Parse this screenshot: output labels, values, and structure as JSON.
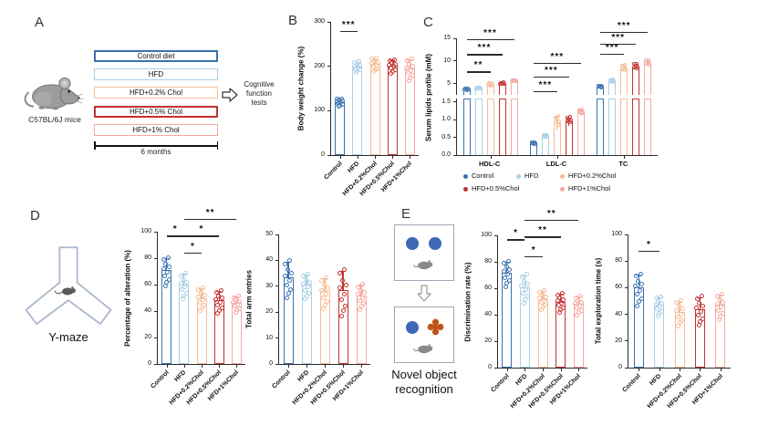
{
  "figure": {
    "background": "#ffffff",
    "series": [
      {
        "key": "control",
        "label": "Control",
        "color": "#3A72B0"
      },
      {
        "key": "hfd",
        "label": "HFD",
        "color": "#A9CFE5"
      },
      {
        "key": "hfd02",
        "label": "HFD+0.2%Chol",
        "color": "#F6BD98"
      },
      {
        "key": "hfd05",
        "label": "HFD+0.5%Chol",
        "color": "#C23230"
      },
      {
        "key": "hfd1",
        "label": "HFD+1%Chol",
        "color": "#F4A9A1"
      }
    ]
  },
  "panel_labels": {
    "A": "A",
    "B": "B",
    "C": "C",
    "D": "D",
    "E": "E"
  },
  "panelA": {
    "mouse_caption": "C57BL/6J mice",
    "diet_boxes": [
      "Control diet",
      "HFD",
      "HFD+0.2% Chol",
      "HFD+0.5% Chol",
      "HFD+1% Chol"
    ],
    "timeline_label": "6 months",
    "arrow_caption": "Cognitive function tests"
  },
  "panelD": {
    "caption": "Y-maze"
  },
  "panelE": {
    "caption_line1": "Novel object",
    "caption_line2": "recognition"
  },
  "chart_data": [
    {
      "id": "body-weight",
      "panel": "B",
      "type": "bar",
      "ylabel": "Body weight change (%)",
      "categories": [
        "Control",
        "HFD",
        "HFD+0.2%Chol",
        "HFD+0.5%Chol",
        "HFD+1%Chol"
      ],
      "values": [
        120,
        200,
        205,
        202,
        195
      ],
      "errors": [
        7,
        10,
        13,
        13,
        20
      ],
      "ylim": [
        0,
        300
      ],
      "yticks": [
        0,
        100,
        200,
        300
      ],
      "significance": [
        {
          "from": 0,
          "to": 1,
          "label": "***",
          "level": 280
        }
      ]
    },
    {
      "id": "serum-lipids",
      "panel": "C",
      "type": "grouped-bar-split-axis",
      "ylabel": "Serum lipids profile (mM)",
      "categories": [
        "Control",
        "HFD",
        "HFD+0.2%Chol",
        "HFD+0.5%Chol",
        "HFD+1%Chol"
      ],
      "group_labels": [
        "HDL-C",
        "LDL-C",
        "TC"
      ],
      "series": [
        {
          "name": "HDL-C",
          "values": [
            3.6,
            3.9,
            4.6,
            4.9,
            5.5
          ],
          "errors": [
            0.3,
            0.25,
            0.55,
            0.35,
            0.3
          ]
        },
        {
          "name": "LDL-C",
          "values": [
            0.32,
            0.52,
            0.9,
            0.95,
            1.2
          ],
          "errors": [
            0.05,
            0.05,
            0.2,
            0.12,
            0.08
          ]
        },
        {
          "name": "TC",
          "values": [
            4.2,
            5.4,
            8.1,
            8.5,
            9.4
          ],
          "errors": [
            0.35,
            0.5,
            1.0,
            0.9,
            0.8
          ]
        }
      ],
      "axis_upper": {
        "lim": [
          2.5,
          15
        ],
        "ticks": [
          5,
          10,
          15
        ]
      },
      "axis_lower": {
        "lim": [
          0,
          1.6
        ],
        "ticks": [
          0,
          0.5,
          1,
          1.5
        ],
        "decimals": 1
      },
      "significance": [
        {
          "group": 0,
          "from": 0,
          "to": 2,
          "label": "**",
          "level": 7.7
        },
        {
          "group": 0,
          "from": 0,
          "to": 3,
          "label": "***",
          "level": 11.5
        },
        {
          "group": 0,
          "from": 0,
          "to": 4,
          "label": "***",
          "level": 14.8
        },
        {
          "group": 1,
          "from": 0,
          "to": 2,
          "label": "***",
          "level": 3.4
        },
        {
          "group": 1,
          "from": 0,
          "to": 3,
          "label": "***",
          "level": 6.6
        },
        {
          "group": 1,
          "from": 0,
          "to": 4,
          "label": "***",
          "level": 9.6
        },
        {
          "group": 2,
          "from": 0,
          "to": 2,
          "label": "***",
          "level": 11.6
        },
        {
          "group": 2,
          "from": 0,
          "to": 3,
          "label": "***",
          "level": 13.8
        },
        {
          "group": 2,
          "from": 0,
          "to": 4,
          "label": "***",
          "level": 16.4
        }
      ],
      "legend_rows": [
        [
          0,
          1,
          2
        ],
        [
          3,
          4
        ]
      ]
    },
    {
      "id": "alteration",
      "panel": "D",
      "type": "bar",
      "ylabel": "Percentage of alteration (%)",
      "categories": [
        "Control",
        "HFD",
        "HFD+0.2%Chol",
        "HFD+0.5%Chol",
        "HFD+1%Chol"
      ],
      "values": [
        71,
        60,
        50,
        48,
        46
      ],
      "errors": [
        9,
        8,
        7,
        7,
        5
      ],
      "ylim": [
        0,
        100
      ],
      "yticks": [
        0,
        20,
        40,
        60,
        80,
        100
      ],
      "significance": [
        {
          "from": 0,
          "to": 1,
          "label": "*",
          "level": 97
        },
        {
          "from": 1,
          "to": 2,
          "label": "*",
          "level": 84
        },
        {
          "from": 1,
          "to": 3,
          "label": "*",
          "level": 97
        },
        {
          "from": 1,
          "to": 4,
          "label": "**",
          "level": 110
        }
      ]
    },
    {
      "id": "arm-entries",
      "panel": "D",
      "type": "bar",
      "ylabel": "Total arm entries",
      "categories": [
        "Control",
        "HFD",
        "HFD+0.2%Chol",
        "HFD+0.5%Chol",
        "HFD+1%Chol"
      ],
      "values": [
        33.5,
        30.5,
        28,
        28.5,
        26.5
      ],
      "errors": [
        6,
        4,
        5,
        7.5,
        4
      ],
      "ylim": [
        0,
        50
      ],
      "yticks": [
        0,
        10,
        20,
        30,
        40,
        50
      ],
      "significance": []
    },
    {
      "id": "discrimination",
      "panel": "E",
      "type": "bar",
      "ylabel": "Discrimination rate (%)",
      "categories": [
        "Control",
        "HFD",
        "HFD+0.2%Chol",
        "HFD+0.5%Chol",
        "HFD+1%Chol"
      ],
      "values": [
        72,
        61,
        52,
        50,
        48
      ],
      "errors": [
        8,
        9,
        6,
        6,
        6
      ],
      "ylim": [
        0,
        100
      ],
      "yticks": [
        0,
        20,
        40,
        60,
        80,
        100
      ],
      "significance": [
        {
          "from": 0,
          "to": 1,
          "label": "*",
          "level": 97
        },
        {
          "from": 1,
          "to": 2,
          "label": "*",
          "level": 84
        },
        {
          "from": 1,
          "to": 3,
          "label": "**",
          "level": 99
        },
        {
          "from": 1,
          "to": 4,
          "label": "**",
          "level": 112
        }
      ]
    },
    {
      "id": "exploration",
      "panel": "E",
      "type": "bar",
      "ylabel": "Total exploration time (s)",
      "categories": [
        "Control",
        "HFD",
        "HFD+0.2%Chol",
        "HFD+0.5%Chol",
        "HFD+1%Chol"
      ],
      "values": [
        60,
        47,
        42,
        44,
        47
      ],
      "errors": [
        10,
        6,
        8,
        9,
        8
      ],
      "ylim": [
        0,
        100
      ],
      "yticks": [
        0,
        20,
        40,
        60,
        80,
        100
      ],
      "significance": [
        {
          "from": 0,
          "to": 1,
          "label": "*",
          "level": 88
        }
      ]
    }
  ]
}
